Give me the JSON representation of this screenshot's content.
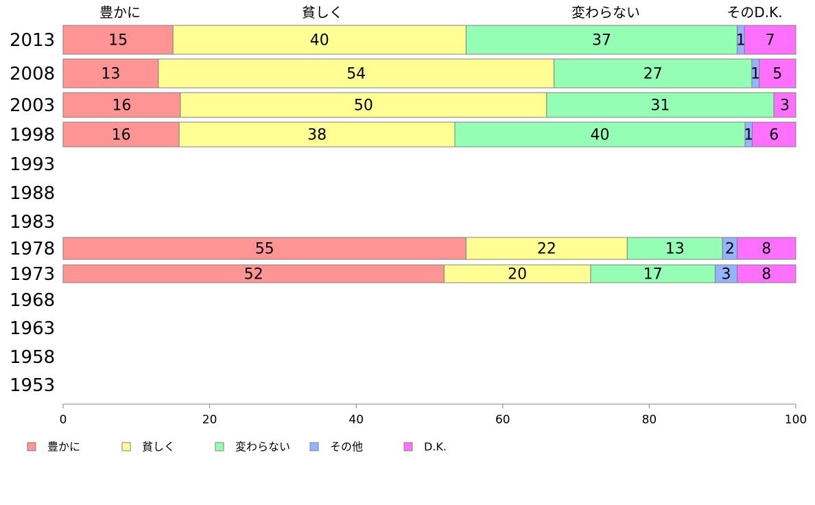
{
  "chart_data": {
    "type": "bar",
    "orientation": "horizontal",
    "stacked": true,
    "categories": [
      "2013",
      "2008",
      "2003",
      "1998",
      "1993",
      "1988",
      "1983",
      "1978",
      "1973",
      "1968",
      "1963",
      "1958",
      "1953"
    ],
    "series": [
      {
        "name": "豊かに",
        "color": "#ff9494",
        "values": [
          15,
          13,
          16,
          16,
          null,
          null,
          null,
          55,
          52,
          null,
          null,
          null,
          null
        ]
      },
      {
        "name": "貧しく",
        "color": "#ffff94",
        "values": [
          40,
          54,
          50,
          38,
          null,
          null,
          null,
          22,
          20,
          null,
          null,
          null,
          null
        ]
      },
      {
        "name": "変わらない",
        "color": "#94ffb4",
        "values": [
          37,
          27,
          31,
          40,
          null,
          null,
          null,
          13,
          17,
          null,
          null,
          null,
          null
        ]
      },
      {
        "name": "その他",
        "color": "#94b4ff",
        "values": [
          1,
          1,
          0,
          1,
          null,
          null,
          null,
          2,
          3,
          null,
          null,
          null,
          null
        ]
      },
      {
        "name": "D.K.",
        "color": "#ff70ff",
        "values": [
          7,
          5,
          3,
          6,
          null,
          null,
          null,
          8,
          8,
          null,
          null,
          null,
          null
        ]
      }
    ],
    "top_labels": [
      "豊かに",
      "貧しく",
      "変わらない",
      "そのD.K."
    ],
    "xlim": [
      0,
      100
    ],
    "xticks": [
      0,
      20,
      40,
      60,
      80,
      100
    ],
    "grid": false,
    "legend_position": "bottom"
  }
}
